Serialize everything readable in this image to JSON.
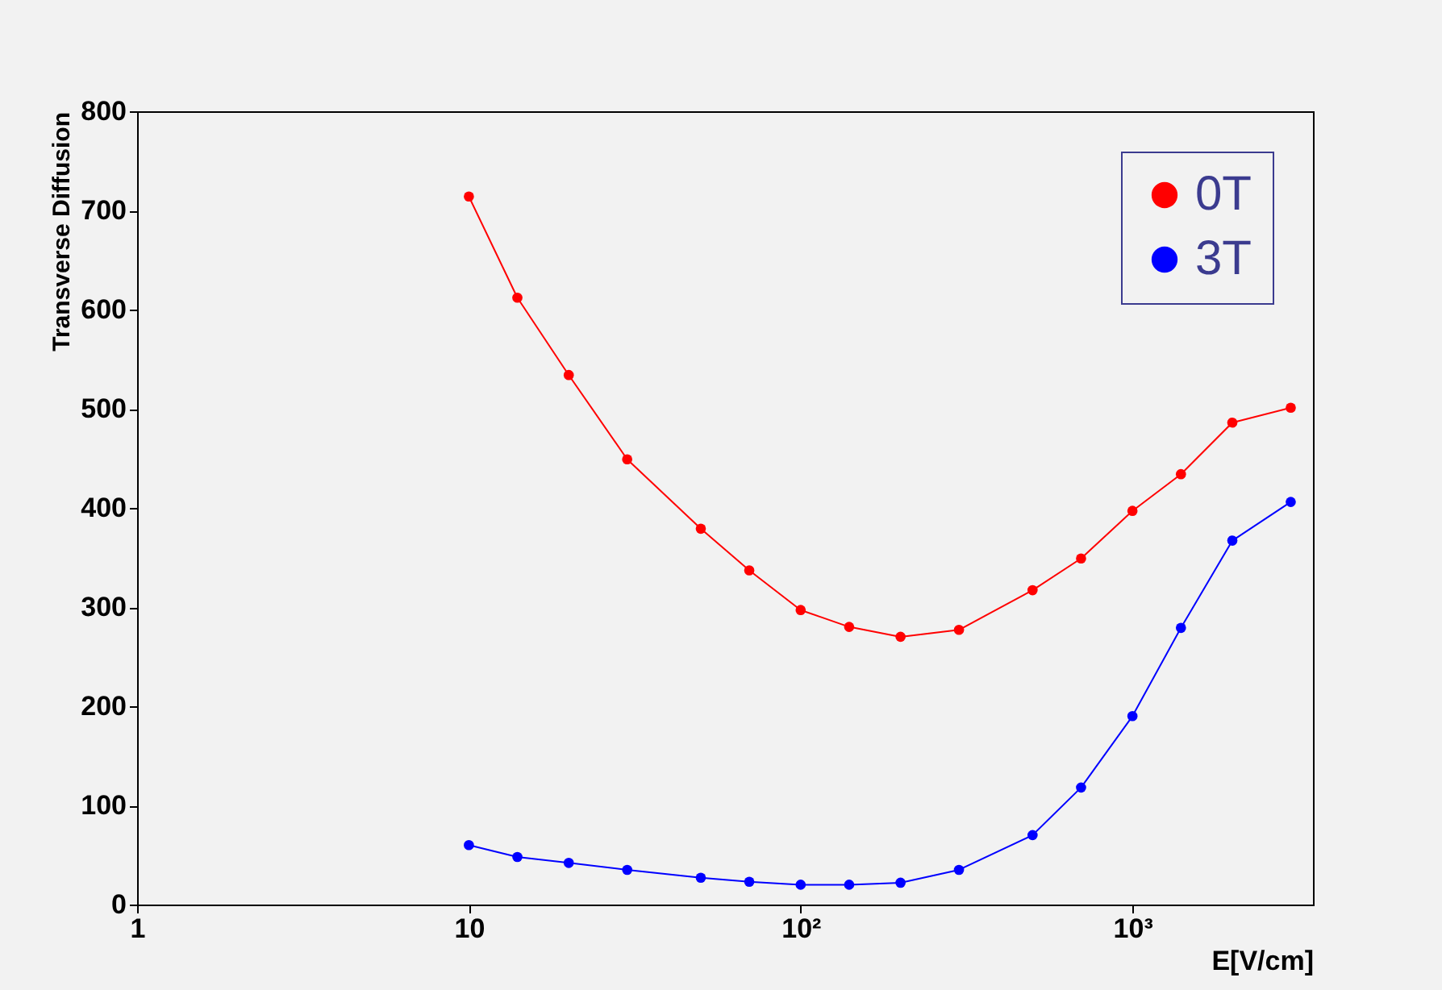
{
  "chart_data": {
    "type": "line",
    "xlabel": "E[V/cm]",
    "ylabel": "Transverse Diffusion",
    "log": "x",
    "xlim": [
      1,
      3500
    ],
    "ylim": [
      0,
      800
    ],
    "xticks": [
      1,
      10,
      {
        "value": 100,
        "label": "10²"
      },
      {
        "value": 1000,
        "label": "10³"
      }
    ],
    "yticks": [
      0,
      100,
      200,
      300,
      400,
      500,
      600,
      700,
      800
    ],
    "x": [
      10,
      14,
      20,
      30,
      50,
      70,
      100,
      140,
      200,
      300,
      500,
      700,
      1000,
      1400,
      2000,
      3000
    ],
    "series": [
      {
        "name": "0T",
        "color": "#ff0000",
        "values": [
          714,
          612,
          534,
          449,
          379,
          337,
          297,
          280,
          270,
          277,
          317,
          349,
          397,
          434,
          486,
          501
        ]
      },
      {
        "name": "3T",
        "color": "#0000ff",
        "values": [
          60,
          48,
          42,
          35,
          27,
          23,
          20,
          20,
          22,
          35,
          70,
          118,
          190,
          279,
          367,
          406
        ]
      }
    ],
    "marker": "circle",
    "legend": "top right",
    "grid": false
  }
}
